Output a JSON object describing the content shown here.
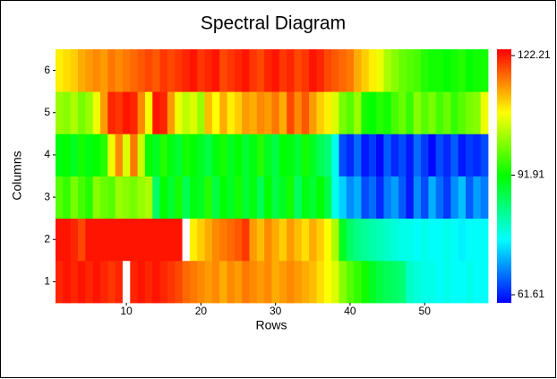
{
  "chart_data": {
    "type": "heatmap",
    "title": "Spectral Diagram",
    "xlabel": "Rows",
    "ylabel": "Columns",
    "x": [
      1,
      2,
      3,
      4,
      5,
      6,
      7,
      8,
      9,
      10,
      11,
      12,
      13,
      14,
      15,
      16,
      17,
      18,
      19,
      20,
      21,
      22,
      23,
      24,
      25,
      26,
      27,
      28,
      29,
      30,
      31,
      32,
      33,
      34,
      35,
      36,
      37,
      38,
      39,
      40,
      41,
      42,
      43,
      44,
      45,
      46,
      47,
      48,
      49,
      50,
      51,
      52,
      53,
      54,
      55,
      56,
      57,
      58
    ],
    "y": [
      1,
      2,
      3,
      4,
      5,
      6
    ],
    "z": [
      [
        120,
        121,
        120,
        121,
        120,
        121,
        120,
        119,
        120,
        124,
        120,
        121,
        120,
        121,
        120,
        119,
        118,
        116,
        115,
        114,
        113,
        114,
        112,
        114,
        113,
        115,
        114,
        113,
        114,
        112,
        113,
        114,
        113,
        112,
        111,
        109,
        107,
        105,
        100,
        97,
        95,
        93,
        90,
        88,
        87,
        86,
        85,
        80,
        79,
        78,
        78,
        77,
        78,
        77,
        77,
        78,
        77,
        77
      ],
      [
        121,
        121,
        120,
        118,
        121,
        121,
        121,
        121,
        121,
        121,
        121,
        121,
        121,
        121,
        121,
        121,
        121,
        124,
        108,
        110,
        112,
        114,
        115,
        116,
        117,
        119,
        113,
        111,
        114,
        112,
        110,
        113,
        111,
        109,
        112,
        110,
        107,
        102,
        90,
        86,
        84,
        83,
        82,
        81,
        80,
        79,
        78,
        78,
        77,
        78,
        77,
        77,
        78,
        77,
        76,
        77,
        77,
        77
      ],
      [
        97,
        95,
        99,
        96,
        94,
        100,
        98,
        97,
        101,
        100,
        99,
        101,
        102,
        86,
        92,
        89,
        93,
        87,
        91,
        90,
        94,
        88,
        92,
        90,
        93,
        89,
        91,
        87,
        92,
        88,
        90,
        93,
        86,
        91,
        89,
        92,
        88,
        78,
        74,
        70,
        72,
        66,
        68,
        64,
        69,
        71,
        67,
        63,
        70,
        66,
        72,
        68,
        65,
        70,
        73,
        67,
        71,
        69
      ],
      [
        91,
        92,
        90,
        93,
        91,
        92,
        94,
        106,
        114,
        105,
        115,
        104,
        92,
        90,
        94,
        91,
        89,
        93,
        92,
        90,
        88,
        91,
        93,
        90,
        92,
        89,
        91,
        94,
        90,
        88,
        92,
        91,
        89,
        93,
        90,
        87,
        85,
        78,
        66,
        64,
        68,
        63,
        65,
        62,
        67,
        64,
        66,
        63,
        68,
        65,
        62,
        66,
        64,
        67,
        63,
        65,
        64,
        66
      ],
      [
        101,
        100,
        102,
        99,
        101,
        106,
        113,
        120,
        119,
        121,
        120,
        114,
        107,
        121,
        120,
        113,
        106,
        103,
        105,
        101,
        111,
        107,
        112,
        108,
        110,
        113,
        112,
        114,
        113,
        115,
        112,
        118,
        114,
        117,
        113,
        110,
        108,
        105,
        99,
        97,
        101,
        93,
        92,
        94,
        93,
        96,
        98,
        95,
        100,
        97,
        99,
        96,
        98,
        95,
        97,
        99,
        100,
        106
      ],
      [
        108,
        109,
        110,
        112,
        113,
        114,
        113,
        115,
        114,
        115,
        116,
        117,
        118,
        117,
        119,
        118,
        119,
        120,
        121,
        119,
        120,
        121,
        118,
        119,
        120,
        121,
        119,
        118,
        120,
        121,
        119,
        120,
        118,
        119,
        121,
        120,
        118,
        117,
        116,
        115,
        112,
        110,
        108,
        106,
        102,
        100,
        98,
        97,
        96,
        94,
        93,
        93,
        92,
        93,
        94,
        92,
        93,
        93
      ]
    ],
    "xlim": [
      0.5,
      58.5
    ],
    "ylim": [
      0.5,
      6.5
    ],
    "xticks": [
      10,
      20,
      30,
      40,
      50
    ],
    "yticks": [
      1,
      2,
      3,
      4,
      5,
      6
    ],
    "zlim": [
      61.61,
      122.21
    ],
    "zticks": [
      61.61,
      91.91,
      122.21
    ],
    "colormap": [
      "#0000ff",
      "#00ffff",
      "#00ff00",
      "#ffff00",
      "#ff0000"
    ],
    "over_color": "#ffffff"
  }
}
